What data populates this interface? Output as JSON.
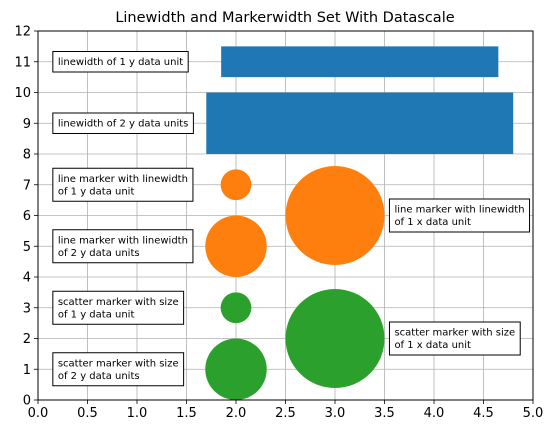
{
  "chart_data": {
    "type": "scatter",
    "title": "Linewidth and Markerwidth Set With Datascale",
    "xlabel": "",
    "ylabel": "",
    "xlim": [
      0,
      5
    ],
    "ylim": [
      0,
      12
    ],
    "xticks": [
      0.0,
      0.5,
      1.0,
      1.5,
      2.0,
      2.5,
      3.0,
      3.5,
      4.0,
      4.5,
      5.0
    ],
    "xtick_labels": [
      "0.0",
      "0.5",
      "1.0",
      "1.5",
      "2.0",
      "2.5",
      "3.0",
      "3.5",
      "4.0",
      "4.5",
      "5.0"
    ],
    "yticks": [
      0,
      1,
      2,
      3,
      4,
      5,
      6,
      7,
      8,
      9,
      10,
      11,
      12
    ],
    "ytick_labels": [
      "0",
      "1",
      "2",
      "3",
      "4",
      "5",
      "6",
      "7",
      "8",
      "9",
      "10",
      "11",
      "12"
    ],
    "grid": true,
    "colors": {
      "blue": "#1f77b4",
      "orange": "#ff7f0e",
      "green": "#2ca02c"
    },
    "lines": [
      {
        "x": [
          1.85,
          4.65
        ],
        "y": 11,
        "width_y": 1,
        "color": "blue"
      },
      {
        "x": [
          1.7,
          4.8
        ],
        "y": 9,
        "width_y": 2,
        "color": "blue"
      }
    ],
    "markers": [
      {
        "x": 2,
        "y": 7,
        "diameter_y": 1,
        "color": "orange"
      },
      {
        "x": 2,
        "y": 5,
        "diameter_y": 2,
        "color": "orange"
      },
      {
        "x": 3,
        "y": 6,
        "diameter_x": 1,
        "color": "orange"
      },
      {
        "x": 2,
        "y": 3,
        "diameter_y": 1,
        "color": "green"
      },
      {
        "x": 2,
        "y": 1,
        "diameter_y": 2,
        "color": "green"
      },
      {
        "x": 3,
        "y": 2,
        "diameter_x": 1,
        "color": "green"
      }
    ],
    "annotations": [
      {
        "lines": [
          "linewidth of 1 y data unit"
        ],
        "x": 0.15,
        "y": 11
      },
      {
        "lines": [
          "linewidth of 2 y data units"
        ],
        "x": 0.15,
        "y": 9
      },
      {
        "lines": [
          "line marker with linewidth",
          "of 1 y data unit"
        ],
        "x": 0.15,
        "y": 7
      },
      {
        "lines": [
          "line marker with linewidth",
          "of 2 y data units"
        ],
        "x": 0.15,
        "y": 5
      },
      {
        "lines": [
          "scatter marker with size",
          "of 1 y data unit"
        ],
        "x": 0.15,
        "y": 3
      },
      {
        "lines": [
          "scatter marker with size",
          "of 2 y data units"
        ],
        "x": 0.15,
        "y": 1
      },
      {
        "lines": [
          "line marker with linewidth",
          "of 1 x data unit"
        ],
        "x": 3.55,
        "y": 6
      },
      {
        "lines": [
          "scatter marker with size",
          "of 1 x data unit"
        ],
        "x": 3.55,
        "y": 2
      }
    ]
  }
}
